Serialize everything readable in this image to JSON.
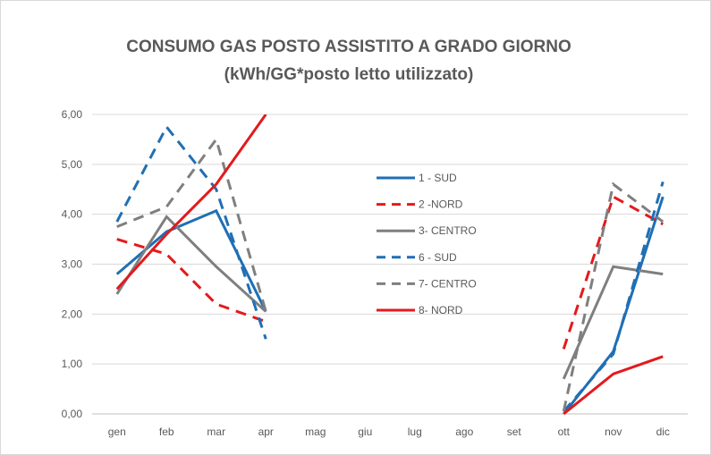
{
  "chart_data": {
    "type": "line",
    "title": "CONSUMO GAS POSTO ASSISTITO  A GRADO GIORNO",
    "subtitle": "(kWh/GG*posto letto utilizzato)",
    "xlabel": "",
    "ylabel": "",
    "ylim": [
      0,
      6
    ],
    "yticks": [
      "0,00",
      "1,00",
      "2,00",
      "3,00",
      "4,00",
      "5,00",
      "6,00"
    ],
    "categories": [
      "gen",
      "feb",
      "mar",
      "apr",
      "mag",
      "giu",
      "lug",
      "ago",
      "set",
      "ott",
      "nov",
      "dic"
    ],
    "grid": true,
    "legend_position": "center-right",
    "series": [
      {
        "name": "1 - SUD",
        "color": "#1f6fb5",
        "dash": false,
        "values": [
          2.8,
          3.65,
          4.07,
          2.05,
          null,
          null,
          null,
          null,
          null,
          0.0,
          1.25,
          4.35
        ]
      },
      {
        "name": "2 -NORD",
        "color": "#e31a1c",
        "dash": true,
        "values": [
          3.5,
          3.2,
          2.2,
          1.85,
          null,
          null,
          null,
          null,
          null,
          1.3,
          4.35,
          3.8
        ]
      },
      {
        "name": "3- CENTRO",
        "color": "#7f7f7f",
        "dash": false,
        "values": [
          2.4,
          3.95,
          2.95,
          2.05,
          null,
          null,
          null,
          null,
          null,
          0.7,
          2.95,
          2.8
        ]
      },
      {
        "name": "6 - SUD",
        "color": "#1f6fb5",
        "dash": true,
        "values": [
          3.85,
          5.75,
          4.5,
          1.5,
          null,
          null,
          null,
          null,
          null,
          0.05,
          1.2,
          4.65
        ]
      },
      {
        "name": "7- CENTRO",
        "color": "#7f7f7f",
        "dash": true,
        "values": [
          3.75,
          4.15,
          5.5,
          2.05,
          null,
          null,
          null,
          null,
          null,
          0.05,
          4.6,
          3.85
        ]
      },
      {
        "name": "8- NORD",
        "color": "#e31a1c",
        "dash": false,
        "values": [
          2.5,
          3.6,
          4.6,
          6.0,
          null,
          null,
          null,
          null,
          null,
          0.0,
          0.8,
          1.15
        ]
      }
    ]
  }
}
